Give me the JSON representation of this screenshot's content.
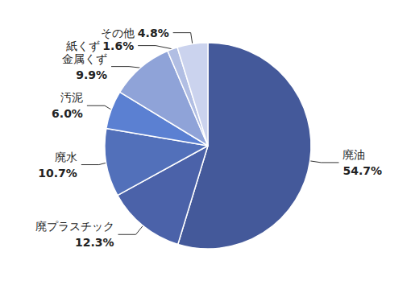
{
  "chart_data": {
    "type": "pie",
    "categories": [
      "廃油",
      "廃プラスチック",
      "廃水",
      "汚泥",
      "金属くず",
      "紙くず",
      "その他"
    ],
    "values": [
      54.7,
      12.3,
      10.7,
      6.0,
      9.9,
      1.6,
      4.8
    ],
    "value_labels": [
      "54.7%",
      "12.3%",
      "10.7%",
      "6.0%",
      "9.9%",
      "1.6%",
      "4.8%"
    ],
    "colors": [
      "#44599a",
      "#4b62a9",
      "#5270ba",
      "#5b80d2",
      "#8fa3d8",
      "#b1bee3",
      "#cbd3ee"
    ],
    "data_labels": true
  }
}
